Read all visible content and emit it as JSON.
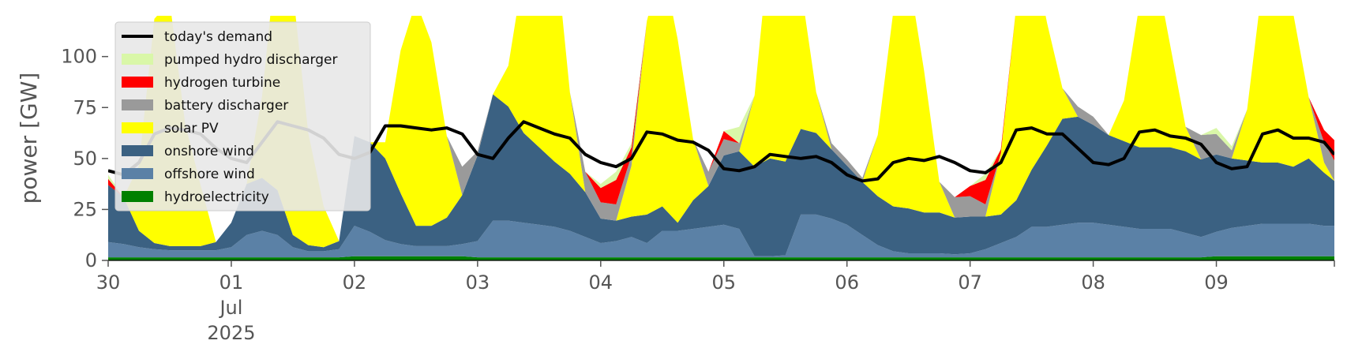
{
  "chart_data": {
    "type": "area",
    "ylabel": "power [GW]",
    "ylim": [
      0,
      120
    ],
    "xlim": [
      "2025-06-30T00:00",
      "2025-07-09T23:00"
    ],
    "yticks": [
      0,
      25,
      50,
      75,
      100
    ],
    "xticks": [
      {
        "date": "2025-06-30",
        "lines": [
          "30"
        ]
      },
      {
        "date": "2025-07-01",
        "lines": [
          "01",
          "Jul",
          "2025"
        ]
      },
      {
        "date": "2025-07-02",
        "lines": [
          "02"
        ]
      },
      {
        "date": "2025-07-03",
        "lines": [
          "03"
        ]
      },
      {
        "date": "2025-07-04",
        "lines": [
          "04"
        ]
      },
      {
        "date": "2025-07-05",
        "lines": [
          "05"
        ]
      },
      {
        "date": "2025-07-06",
        "lines": [
          "06"
        ]
      },
      {
        "date": "2025-07-07",
        "lines": [
          "07"
        ]
      },
      {
        "date": "2025-07-08",
        "lines": [
          "08"
        ]
      },
      {
        "date": "2025-07-09",
        "lines": [
          "09"
        ]
      }
    ],
    "legend_position": "upper-left",
    "x": [
      "2025-06-30T00:00",
      "2025-06-30T03:00",
      "2025-06-30T06:00",
      "2025-06-30T09:00",
      "2025-06-30T12:00",
      "2025-06-30T15:00",
      "2025-06-30T18:00",
      "2025-06-30T21:00",
      "2025-07-01T00:00",
      "2025-07-01T03:00",
      "2025-07-01T06:00",
      "2025-07-01T09:00",
      "2025-07-01T12:00",
      "2025-07-01T15:00",
      "2025-07-01T18:00",
      "2025-07-01T21:00",
      "2025-07-02T00:00",
      "2025-07-02T03:00",
      "2025-07-02T06:00",
      "2025-07-02T09:00",
      "2025-07-02T12:00",
      "2025-07-02T15:00",
      "2025-07-02T18:00",
      "2025-07-02T21:00",
      "2025-07-03T00:00",
      "2025-07-03T03:00",
      "2025-07-03T06:00",
      "2025-07-03T09:00",
      "2025-07-03T12:00",
      "2025-07-03T15:00",
      "2025-07-03T18:00",
      "2025-07-03T21:00",
      "2025-07-04T00:00",
      "2025-07-04T03:00",
      "2025-07-04T06:00",
      "2025-07-04T09:00",
      "2025-07-04T12:00",
      "2025-07-04T15:00",
      "2025-07-04T18:00",
      "2025-07-04T21:00",
      "2025-07-05T00:00",
      "2025-07-05T03:00",
      "2025-07-05T06:00",
      "2025-07-05T09:00",
      "2025-07-05T12:00",
      "2025-07-05T15:00",
      "2025-07-05T18:00",
      "2025-07-05T21:00",
      "2025-07-06T00:00",
      "2025-07-06T03:00",
      "2025-07-06T06:00",
      "2025-07-06T09:00",
      "2025-07-06T12:00",
      "2025-07-06T15:00",
      "2025-07-06T18:00",
      "2025-07-06T21:00",
      "2025-07-07T00:00",
      "2025-07-07T03:00",
      "2025-07-07T06:00",
      "2025-07-07T09:00",
      "2025-07-07T12:00",
      "2025-07-07T15:00",
      "2025-07-07T18:00",
      "2025-07-07T21:00",
      "2025-07-08T00:00",
      "2025-07-08T03:00",
      "2025-07-08T06:00",
      "2025-07-08T09:00",
      "2025-07-08T12:00",
      "2025-07-08T15:00",
      "2025-07-08T18:00",
      "2025-07-08T21:00",
      "2025-07-09T00:00",
      "2025-07-09T03:00",
      "2025-07-09T06:00",
      "2025-07-09T09:00",
      "2025-07-09T12:00",
      "2025-07-09T15:00",
      "2025-07-09T18:00",
      "2025-07-09T21:00",
      "2025-07-09T23:00"
    ],
    "series": [
      {
        "name": "hydroelectricity",
        "color": "#008000",
        "values": [
          1.5,
          1.5,
          1.5,
          1.5,
          1.5,
          1.5,
          1.5,
          1.5,
          1.5,
          1.5,
          1.5,
          1.5,
          1.5,
          1.5,
          1.5,
          1.5,
          2,
          2,
          2,
          2,
          2,
          2,
          2,
          2,
          1.5,
          1.5,
          1.5,
          1.5,
          1.5,
          1.5,
          1.5,
          1.5,
          1.5,
          1.5,
          1.5,
          1.5,
          1.5,
          1.5,
          1.5,
          1.5,
          1.5,
          1.5,
          1.5,
          1.5,
          1.5,
          1.5,
          1.5,
          1.5,
          1.5,
          1.5,
          1.5,
          1.5,
          1.5,
          1.5,
          1.5,
          1.5,
          1.5,
          1.5,
          1.5,
          1.5,
          1.5,
          1.5,
          1.5,
          1.5,
          1.5,
          1.5,
          1.5,
          1.5,
          1.5,
          1.5,
          1.5,
          1.5,
          2,
          2,
          2,
          2,
          2,
          2,
          2,
          2,
          2
        ]
      },
      {
        "name": "offshore wind",
        "color": "#5b81a6",
        "values": [
          7.5,
          6.5,
          5,
          4,
          3.5,
          3.5,
          3.5,
          3.5,
          5,
          11,
          13,
          11,
          5,
          3,
          3,
          4,
          15,
          12,
          8,
          6,
          5,
          5,
          5,
          6,
          8,
          18,
          18,
          17,
          16,
          15,
          13,
          10,
          7,
          8,
          10,
          7,
          13,
          13,
          14,
          15,
          16,
          14,
          0.5,
          0.5,
          1,
          21,
          21,
          19,
          16,
          11,
          6,
          3,
          2,
          2,
          2,
          1.5,
          2,
          4,
          7,
          10,
          15,
          15,
          16,
          17,
          17,
          16,
          15,
          14,
          14,
          14,
          12,
          10,
          12,
          14,
          15,
          16,
          16,
          16,
          16,
          15,
          15
        ]
      },
      {
        "name": "onshore wind",
        "color": "#3b6182",
        "values": [
          28,
          23,
          8,
          3,
          2,
          2,
          2,
          4,
          12,
          25,
          26,
          22,
          6,
          3,
          2,
          4,
          44,
          44,
          40,
          25,
          10,
          10,
          14,
          24,
          42,
          62,
          56,
          44,
          38,
          32,
          28,
          22,
          12,
          10,
          10,
          14,
          12,
          4,
          14,
          20,
          34,
          38,
          44,
          48,
          46,
          42,
          40,
          34,
          29,
          26,
          24,
          22,
          22,
          20,
          20,
          18,
          18,
          16,
          14,
          18,
          28,
          40,
          52,
          52,
          48,
          44,
          42,
          40,
          40,
          40,
          40,
          38,
          38,
          34,
          32,
          30,
          30,
          28,
          32,
          26,
          22
        ]
      },
      {
        "name": "solar PV",
        "color": "#ffff00",
        "values": [
          0,
          0,
          32,
          110,
          120,
          60,
          30,
          0,
          0,
          0,
          40,
          120,
          120,
          55,
          20,
          0,
          0,
          0,
          8,
          70,
          110,
          90,
          40,
          0,
          0,
          0,
          20,
          80,
          120,
          110,
          40,
          0,
          0,
          0,
          25,
          95,
          120,
          90,
          30,
          0,
          0,
          0,
          35,
          108,
          120,
          70,
          20,
          0,
          0,
          0,
          30,
          95,
          115,
          70,
          15,
          0,
          0,
          0,
          30,
          95,
          110,
          60,
          15,
          0,
          0,
          0,
          20,
          70,
          90,
          50,
          12,
          0,
          0,
          0,
          25,
          88,
          100,
          75,
          30,
          5,
          0
        ]
      },
      {
        "name": "battery discharger",
        "color": "#9a9a9a",
        "values": [
          0,
          0,
          0,
          0,
          0,
          0,
          0,
          0,
          0,
          0,
          0,
          0,
          0,
          0,
          0,
          0,
          0,
          0,
          0,
          0,
          0,
          0,
          0,
          14,
          2,
          0,
          0,
          0,
          0,
          0,
          0,
          10,
          8,
          8,
          5,
          0,
          0,
          0,
          0,
          7,
          8,
          4,
          0,
          0,
          0,
          0,
          0,
          3,
          3,
          2,
          0,
          0,
          0,
          0,
          0,
          10,
          10,
          6,
          0,
          0,
          0,
          0,
          0,
          5,
          4,
          0,
          0,
          0,
          0,
          0,
          0,
          12,
          10,
          4,
          0,
          0,
          0,
          0,
          0,
          10,
          10
        ]
      },
      {
        "name": "hydrogen turbine",
        "color": "#ff0000",
        "values": [
          3,
          0,
          0,
          0,
          0,
          0,
          0,
          0,
          0,
          0,
          0,
          0,
          0,
          0,
          0,
          0,
          0,
          0,
          0,
          0,
          0,
          0,
          0,
          0,
          0,
          0,
          0,
          0,
          0,
          0,
          0,
          0,
          7,
          12,
          4,
          0,
          0,
          0,
          0,
          0,
          4,
          0,
          0,
          0,
          0,
          0,
          0,
          0,
          0,
          0,
          0,
          0,
          0,
          0,
          0,
          0,
          5,
          12,
          2,
          0,
          0,
          0,
          0,
          0,
          0,
          0,
          0,
          0,
          0,
          0,
          0,
          0,
          0,
          0,
          0,
          0,
          0,
          0,
          0,
          6,
          10
        ]
      },
      {
        "name": "pumped hydro discharger",
        "color": "#d9f7a8",
        "values": [
          2,
          0,
          0,
          0,
          0,
          0,
          0,
          0,
          0,
          0,
          0,
          0,
          0,
          0,
          0,
          0,
          0,
          0,
          0,
          0,
          0,
          0,
          0,
          0,
          0,
          0,
          0,
          0,
          0,
          0,
          0,
          0,
          2,
          4,
          2,
          0,
          0,
          0,
          0,
          0,
          0,
          8,
          0,
          0,
          0,
          0,
          0,
          0,
          0,
          0,
          0,
          0,
          0,
          0,
          0,
          0,
          0,
          3,
          0,
          0,
          0,
          0,
          0,
          0,
          0,
          0,
          0,
          0,
          0,
          0,
          0,
          0,
          3,
          2,
          0,
          0,
          0,
          0,
          0,
          0,
          0
        ]
      }
    ],
    "line": {
      "name": "today's demand",
      "color": "#000000",
      "values": [
        44,
        42,
        48,
        62,
        65,
        64,
        62,
        55,
        50,
        48,
        58,
        68,
        66,
        64,
        60,
        52,
        50,
        53,
        66,
        66,
        65,
        64,
        65,
        62,
        52,
        50,
        60,
        68,
        65,
        62,
        60,
        52,
        48,
        46,
        50,
        63,
        62,
        59,
        58,
        54,
        45,
        44,
        46,
        52,
        51,
        50,
        51,
        48,
        42,
        39,
        40,
        48,
        50,
        49,
        51,
        48,
        44,
        43,
        48,
        64,
        65,
        62,
        62,
        55,
        48,
        47,
        50,
        63,
        64,
        61,
        60,
        57,
        48,
        45,
        46,
        62,
        64,
        60,
        60,
        58,
        52
      ]
    },
    "legend": [
      {
        "label": "today's demand",
        "kind": "line",
        "color": "#000000"
      },
      {
        "label": "pumped hydro discharger",
        "kind": "patch",
        "color": "#d9f7a8"
      },
      {
        "label": "hydrogen turbine",
        "kind": "patch",
        "color": "#ff0000"
      },
      {
        "label": "battery discharger",
        "kind": "patch",
        "color": "#9a9a9a"
      },
      {
        "label": "solar PV",
        "kind": "patch",
        "color": "#ffff00"
      },
      {
        "label": "onshore wind",
        "kind": "patch",
        "color": "#3b6182"
      },
      {
        "label": "offshore wind",
        "kind": "patch",
        "color": "#5b81a6"
      },
      {
        "label": "hydroelectricity",
        "kind": "patch",
        "color": "#008000"
      }
    ]
  }
}
